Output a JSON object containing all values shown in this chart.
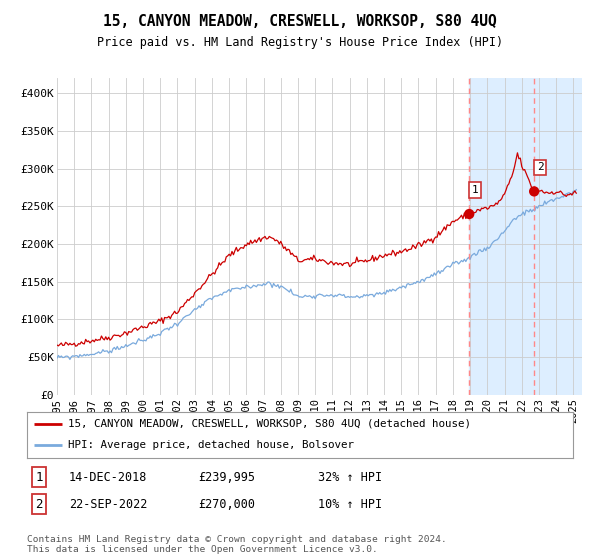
{
  "title": "15, CANYON MEADOW, CRESWELL, WORKSOP, S80 4UQ",
  "subtitle": "Price paid vs. HM Land Registry's House Price Index (HPI)",
  "yticks": [
    0,
    50000,
    100000,
    150000,
    200000,
    250000,
    300000,
    350000,
    400000
  ],
  "ytick_labels": [
    "£0",
    "£50K",
    "£100K",
    "£150K",
    "£200K",
    "£250K",
    "£300K",
    "£350K",
    "£400K"
  ],
  "xlim_start": 1995.0,
  "xlim_end": 2025.5,
  "ylim": [
    0,
    420000
  ],
  "hpi_color": "#7aaadd",
  "price_color": "#cc0000",
  "sale1_date_label": "14-DEC-2018",
  "sale1_price_label": "£239,995",
  "sale1_hpi_label": "32% ↑ HPI",
  "sale1_x": 2018.95,
  "sale1_y": 239995,
  "sale2_date_label": "22-SEP-2022",
  "sale2_price_label": "£270,000",
  "sale2_hpi_label": "10% ↑ HPI",
  "sale2_x": 2022.72,
  "sale2_y": 270000,
  "legend_label_price": "15, CANYON MEADOW, CRESWELL, WORKSOP, S80 4UQ (detached house)",
  "legend_label_hpi": "HPI: Average price, detached house, Bolsover",
  "footer_text": "Contains HM Land Registry data © Crown copyright and database right 2024.\nThis data is licensed under the Open Government Licence v3.0.",
  "background_color": "#ffffff",
  "plot_bg_color": "#ffffff",
  "highlight_bg_color": "#ddeeff",
  "grid_color": "#cccccc",
  "dashed_line_color": "#ff8888"
}
